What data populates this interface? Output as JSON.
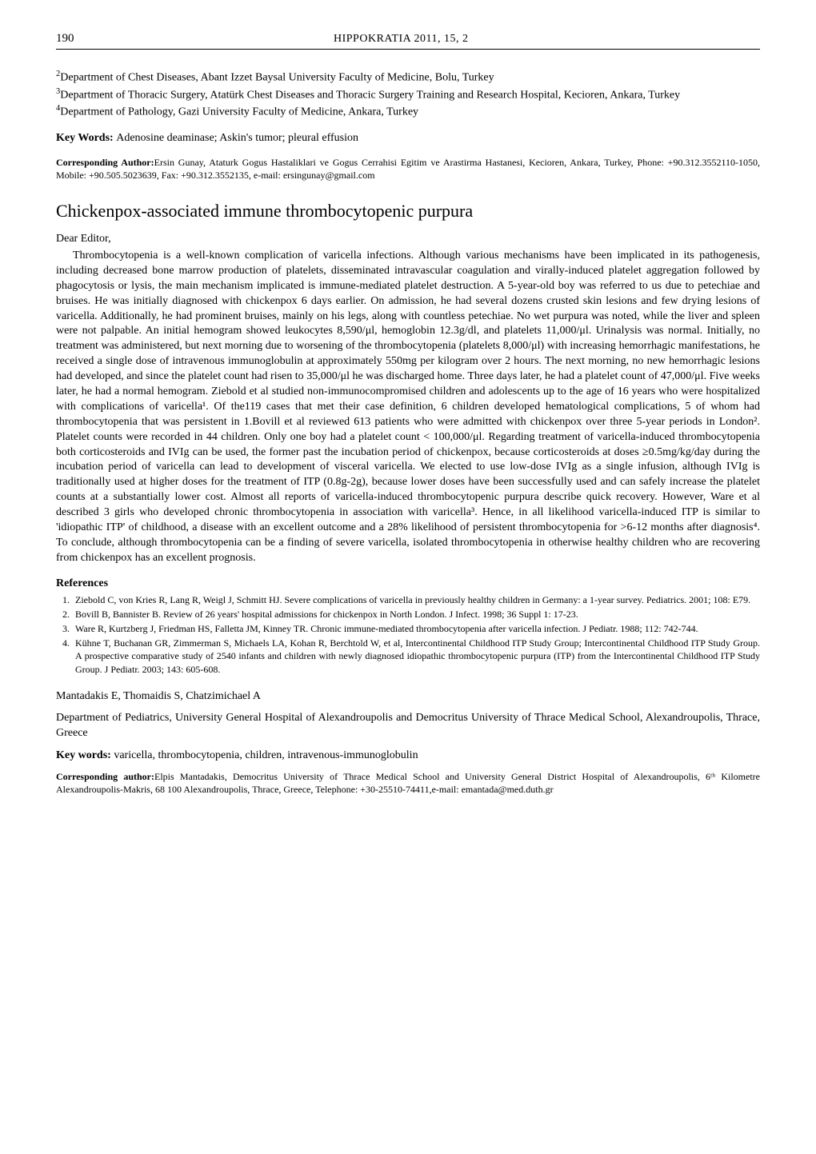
{
  "header": {
    "page_number": "190",
    "journal": "HIPPOKRATIA 2011, 15, 2"
  },
  "top_section": {
    "affiliations": [
      {
        "sup": "2",
        "text": "Department of Chest Diseases, Abant Izzet Baysal University Faculty of Medicine, Bolu, Turkey"
      },
      {
        "sup": "3",
        "text": "Department of Thoracic Surgery, Atatürk Chest Diseases and Thoracic Surgery Training and Research Hospital, Kecioren, Ankara, Turkey"
      },
      {
        "sup": "4",
        "text": "Department of Pathology, Gazi University Faculty of Medicine, Ankara, Turkey"
      }
    ],
    "keywords_label": "Key Words: ",
    "keywords_text": "Adenosine deaminase; Askin's tumor; pleural effusion",
    "corr_label": "Corresponding Author:",
    "corr_text": "Ersin Gunay, Ataturk Gogus Hastaliklari ve Gogus Cerrahisi Egitim ve Arastirma Hastanesi, Kecioren, Ankara, Turkey, Phone: +90.312.3552110-1050, Mobile: +90.505.5023639, Fax: +90.312.3552135, e-mail: ersingunay@gmail.com"
  },
  "article": {
    "title": "Chickenpox-associated immune thrombocytopenic purpura",
    "salutation": "Dear Editor,",
    "body": "Thrombocytopenia is a well-known complication of varicella infections. Although various mechanisms have been implicated in its pathogenesis, including decreased bone marrow production of platelets, disseminated intravascular coagulation and virally-induced platelet aggregation followed by phagocytosis or lysis, the main mechanism implicated is immune-mediated platelet destruction. A 5-year-old boy was referred to us due to petechiae and bruises. He was initially diagnosed with chickenpox 6 days earlier. On admission, he had several dozens crusted skin lesions and few drying lesions of varicella. Additionally, he had prominent bruises, mainly on his legs, along with countless petechiae. No wet purpura was noted, while the liver and spleen were not palpable. An initial hemogram showed leukocytes 8,590/μl, hemoglobin 12.3g/dl, and platelets 11,000/μl. Urinalysis was normal. Initially, no treatment was administered, but next morning due to worsening of the thrombocytopenia (platelets 8,000/μl) with increasing hemorrhagic manifestations, he received a single dose of intravenous immunoglobulin at approximately 550mg per kilogram over 2 hours. The next morning, no new hemorrhagic lesions had developed, and since the platelet count had risen to 35,000/μl he was discharged home. Three days later, he had a platelet count of 47,000/μl. Five weeks later, he had a normal hemogram. Ziebold et al studied non-immunocompromised children and adolescents up to the age of 16 years who were hospitalized with complications of varicella¹. Of the119 cases that met their case definition, 6 children developed hematological complications, 5 of whom had thrombocytopenia that was persistent in 1.Bovill et al reviewed 613 patients who were admitted with chickenpox over three 5-year periods in London². Platelet counts were recorded in 44 children. Only one boy had a platelet count < 100,000/μl. Regarding treatment of varicella-induced thrombocytopenia both corticosteroids and IVIg can be used, the former past the incubation period of chickenpox, because corticosteroids at doses ≥0.5mg/kg/day during the incubation period of varicella can lead to development of visceral varicella. We elected to use low-dose IVIg as a single infusion, although IVIg is traditionally used at higher doses for the treatment of ITP (0.8g-2g), because lower doses have been successfully used and can safely increase the platelet counts at a substantially lower cost. Almost all reports of varicella-induced thrombocytopenic purpura describe quick recovery. However, Ware et al described 3 girls who developed chronic thrombocytopenia in association with varicella³. Hence, in all likelihood varicella-induced ITP is similar to 'idiopathic ITP' of childhood, a disease with an excellent outcome and a 28% likelihood of persistent thrombocytopenia for >6-12 months after diagnosis⁴. To conclude, although thrombocytopenia can be a finding of severe varicella, isolated thrombocytopenia in otherwise healthy children who are recovering from chickenpox has an excellent prognosis.",
    "references_heading": "References",
    "references": [
      "Ziebold C, von Kries R, Lang R, Weigl J, Schmitt HJ. Severe complications of varicella in previously healthy children in Germany: a 1-year survey. Pediatrics. 2001; 108: E79.",
      "Bovill B, Bannister B. Review of 26 years' hospital admissions for chickenpox in North London. J Infect. 1998; 36 Suppl 1: 17-23.",
      "Ware R, Kurtzberg J, Friedman HS, Falletta JM, Kinney TR. Chronic immune-mediated thrombocytopenia after varicella infection. J Pediatr. 1988; 112: 742-744.",
      "Kühne T, Buchanan GR, Zimmerman S, Michaels LA, Kohan R, Berchtold W, et al, Intercontinental Childhood ITP Study Group; Intercontinental Childhood ITP Study Group. A prospective comparative study of 2540 infants and children with newly diagnosed idiopathic thrombocytopenic purpura (ITP) from the Intercontinental Childhood ITP Study Group. J Pediatr. 2003; 143: 605-608."
    ],
    "authors": "Mantadakis E, Thomaidis S, Chatzimichael A",
    "department": "Department of Pediatrics, University General Hospital of Alexandroupolis and Democritus University of Thrace Medical School, Alexandroupolis, Thrace, Greece",
    "keywords2_label": "Key words: ",
    "keywords2_text": "varicella, thrombocytopenia, children, intravenous-immunoglobulin",
    "corr2_label": "Corresponding author:",
    "corr2_text": "Elpis Mantadakis, Democritus University of Thrace Medical School and University General District Hospital of Alexandroupolis, 6ᵗʰ Kilometre Alexandroupolis-Makris, 68 100 Alexandroupolis, Thrace, Greece, Telephone: +30-25510-74411,e-mail: emantada@med.duth.gr"
  }
}
